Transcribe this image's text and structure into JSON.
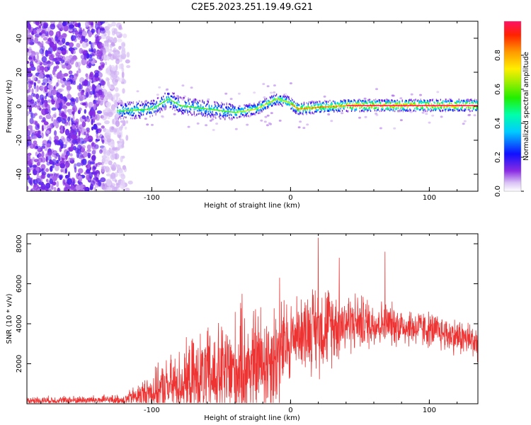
{
  "title": "C2E5.2023.251.19.49.G21",
  "chart_data": [
    {
      "type": "heatmap",
      "panel": "top",
      "xlabel": "Height of straight line (km)",
      "ylabel": "Frequency (Hz)",
      "xlim": [
        -190,
        135
      ],
      "ylim": [
        -50,
        50
      ],
      "xticks": [
        "-100",
        "0",
        "100"
      ],
      "yticks": [
        "-40",
        "-20",
        "0",
        "20",
        "40"
      ],
      "colorbar": {
        "label": "Normalized spectral amplitude",
        "range": [
          0,
          1
        ],
        "ticks": [
          "0.0",
          "0.2",
          "0.4",
          "0.6",
          "0.8"
        ],
        "colormap": "rainbow"
      },
      "description_trace": [
        {
          "x": -120,
          "y": -3
        },
        {
          "x": -100,
          "y": -2
        },
        {
          "x": -88,
          "y": 4
        },
        {
          "x": -80,
          "y": 0
        },
        {
          "x": -60,
          "y": -2
        },
        {
          "x": -40,
          "y": -4
        },
        {
          "x": -25,
          "y": -2
        },
        {
          "x": -15,
          "y": 2
        },
        {
          "x": -10,
          "y": 4
        },
        {
          "x": -2,
          "y": 2
        },
        {
          "x": 5,
          "y": -2
        },
        {
          "x": 20,
          "y": -1
        },
        {
          "x": 40,
          "y": 0
        },
        {
          "x": 80,
          "y": 0
        },
        {
          "x": 130,
          "y": 0
        }
      ]
    },
    {
      "type": "line",
      "panel": "bottom",
      "xlabel": "Height of straight line (km)",
      "ylabel": "SNR (10 * v/v)",
      "xlim": [
        -190,
        135
      ],
      "ylim": [
        0,
        8500
      ],
      "xticks": [
        "-100",
        "0",
        "100"
      ],
      "yticks": [
        "2000",
        "4000",
        "6000",
        "8000"
      ],
      "color": "#ee3333",
      "envelope": [
        {
          "x": -190,
          "base": 150,
          "amp": 250
        },
        {
          "x": -120,
          "base": 200,
          "amp": 300
        },
        {
          "x": -100,
          "base": 600,
          "amp": 1200
        },
        {
          "x": -70,
          "base": 1200,
          "amp": 2500
        },
        {
          "x": -40,
          "base": 1600,
          "amp": 3500
        },
        {
          "x": -10,
          "base": 2400,
          "amp": 3500
        },
        {
          "x": 5,
          "base": 3600,
          "amp": 2000
        },
        {
          "x": 20,
          "base": 3800,
          "amp": 2800
        },
        {
          "x": 40,
          "base": 4100,
          "amp": 1900
        },
        {
          "x": 70,
          "base": 4000,
          "amp": 1300
        },
        {
          "x": 100,
          "base": 3700,
          "amp": 1100
        },
        {
          "x": 135,
          "base": 3100,
          "amp": 1100
        }
      ],
      "peaks": [
        {
          "x": 20,
          "y": 8300
        },
        {
          "x": 68,
          "y": 7600
        },
        {
          "x": 35,
          "y": 7300
        },
        {
          "x": -8,
          "y": 6300
        },
        {
          "x": -35,
          "y": 5500
        }
      ]
    }
  ]
}
